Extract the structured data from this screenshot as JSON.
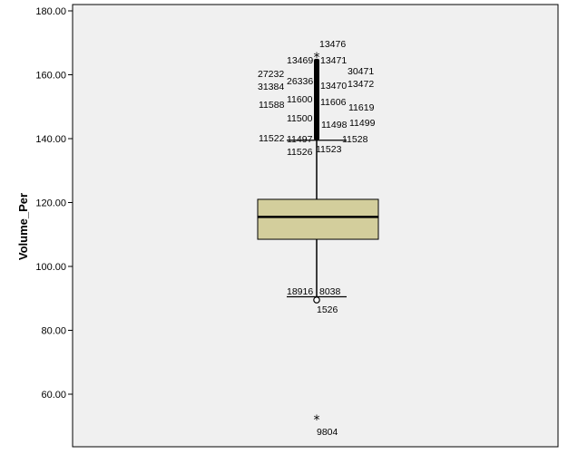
{
  "chart_data": {
    "type": "boxplot",
    "ylabel": "Volume_Per",
    "ylim": [
      45,
      182
    ],
    "yticks": [
      {
        "value": 60,
        "label": "60.00"
      },
      {
        "value": 80,
        "label": "80.00"
      },
      {
        "value": 100,
        "label": "100.00"
      },
      {
        "value": 120,
        "label": "120.00"
      },
      {
        "value": 140,
        "label": "140.00"
      },
      {
        "value": 160,
        "label": "160.00"
      },
      {
        "value": 180,
        "label": "180.00"
      }
    ],
    "box": {
      "q1": 108.5,
      "median": 115.5,
      "q3": 121.0,
      "whisker_low": 90.5,
      "whisker_high": 139.5,
      "fill": "#d3ce9c"
    },
    "outlier_band": {
      "from": 139.5,
      "to": 165
    },
    "outliers": [
      {
        "label": "13476",
        "value": 165.5,
        "marker": "star"
      },
      {
        "label": "13469",
        "value": 162.5
      },
      {
        "label": "13471",
        "value": 162.3
      },
      {
        "label": "30471",
        "value": 159.0
      },
      {
        "label": "27232",
        "value": 158.5
      },
      {
        "label": "26336",
        "value": 157.3
      },
      {
        "label": "13470",
        "value": 157.0
      },
      {
        "label": "13472",
        "value": 156.5
      },
      {
        "label": "31384",
        "value": 156.0
      },
      {
        "label": "11600",
        "value": 153.0
      },
      {
        "label": "11606",
        "value": 152.5
      },
      {
        "label": "11588",
        "value": 151.5
      },
      {
        "label": "11619",
        "value": 150.5
      },
      {
        "label": "11500",
        "value": 146.0
      },
      {
        "label": "11498",
        "value": 145.0
      },
      {
        "label": "11499",
        "value": 145.5
      },
      {
        "label": "11522",
        "value": 140.0
      },
      {
        "label": "11497",
        "value": 140.0
      },
      {
        "label": "11528",
        "value": 139.5
      },
      {
        "label": "11526",
        "value": 135.5
      },
      {
        "label": "11523",
        "value": 136.0
      },
      {
        "label": "18916",
        "value": 91.0
      },
      {
        "label": "8038",
        "value": 91.0
      },
      {
        "label": "1526",
        "value": 89.5,
        "marker": "circle"
      },
      {
        "label": "9804",
        "value": 52.0,
        "marker": "star"
      }
    ]
  }
}
